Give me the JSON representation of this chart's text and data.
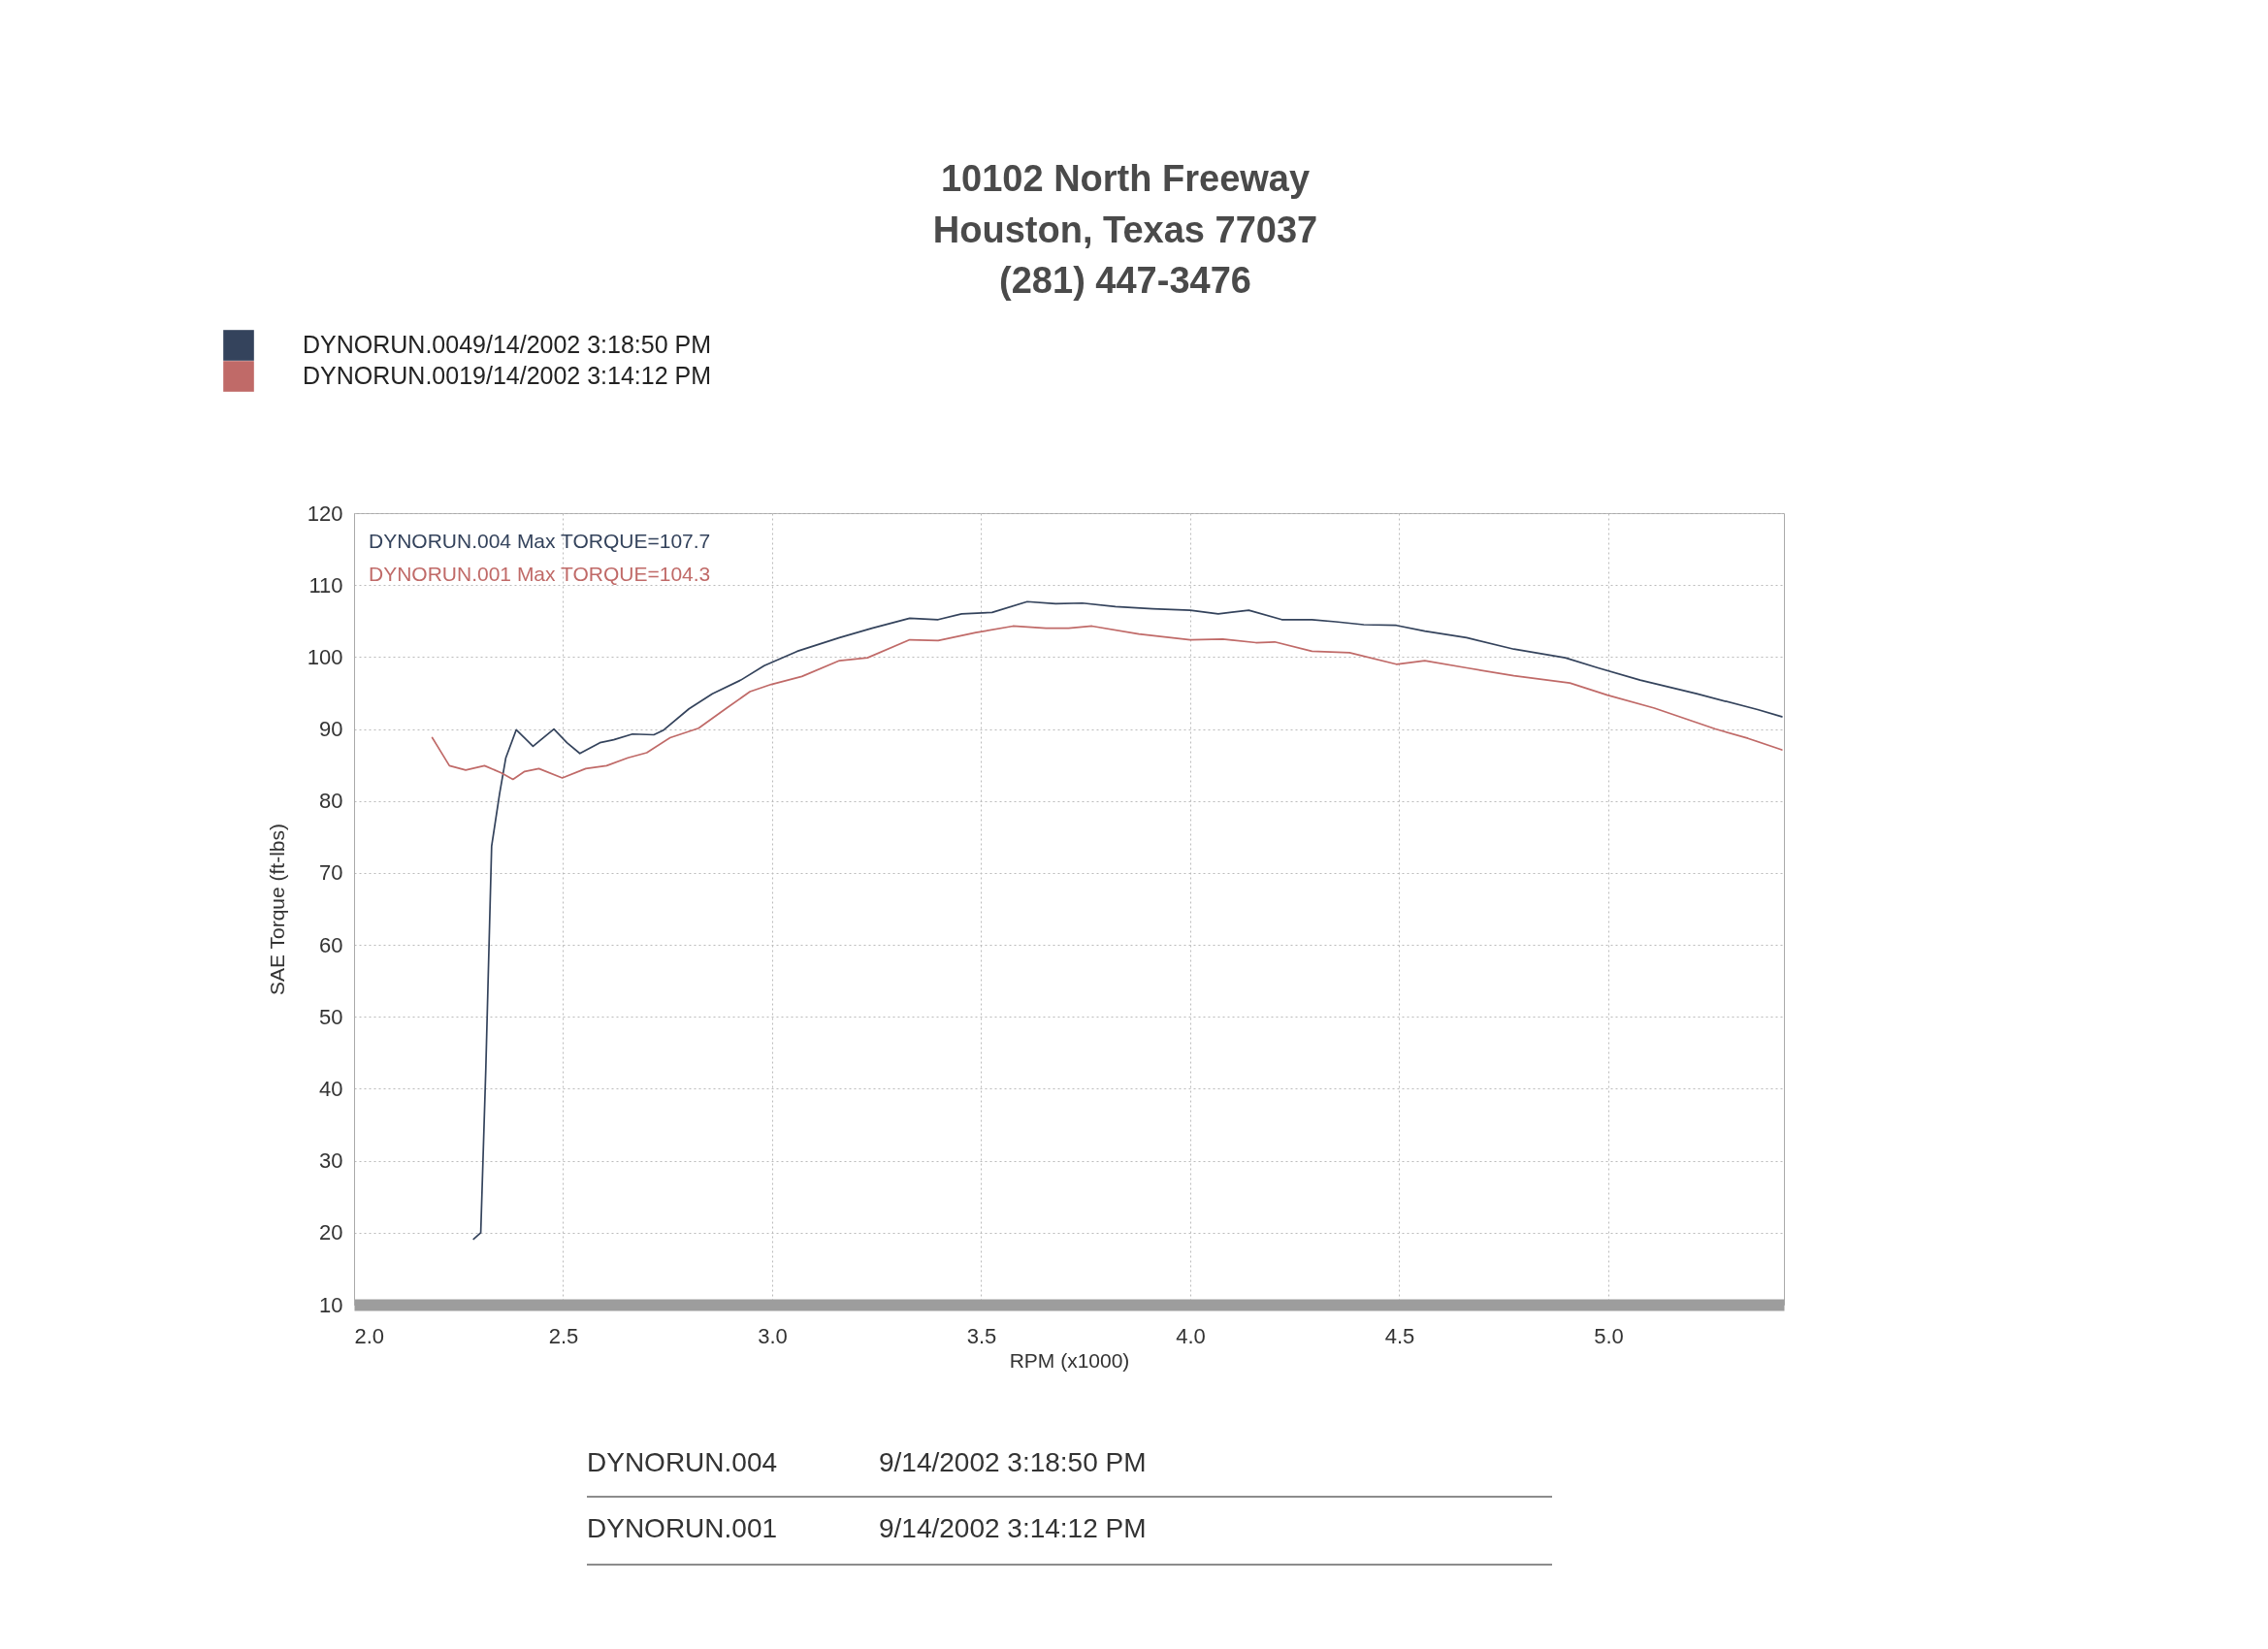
{
  "chart_data": {
    "type": "line",
    "xlabel": "RPM (x1000)",
    "ylabel": "SAE Torque (ft-lbs)",
    "annotations": [
      "DYNORUN.004 Max TORQUE=107.7",
      "DYNORUN.001 Max TORQUE=104.3",
      "10102 North Freeway",
      "Houston, Texas 77037",
      "(281) 447-3476",
      "DYNORUN.004",
      "9/14/2002 3:18:50 PM",
      "DYNORUN.001",
      "9/14/2002 3:14:12 PM"
    ],
    "series": [
      {
        "name": "DYNORUN.0049/14/2002 3:18:50 PM",
        "color": "#34435c",
        "x": [
          2.286,
          2.303,
          2.315,
          2.329,
          2.348,
          2.363,
          2.388,
          2.428,
          2.478,
          2.509,
          2.54,
          2.588,
          2.621,
          2.666,
          2.717,
          2.739,
          2.801,
          2.857,
          2.925,
          2.981,
          3.06,
          3.161,
          3.239,
          3.329,
          3.397,
          3.453,
          3.526,
          3.61,
          3.678,
          3.742,
          3.821,
          3.91,
          4.0,
          4.067,
          4.14,
          4.219,
          4.291,
          4.348,
          4.415,
          4.493,
          4.561,
          4.661,
          4.774,
          4.897,
          4.975,
          5.076,
          5.211,
          5.357,
          5.415
        ],
        "values": [
          19.1,
          20.0,
          42.6,
          73.7,
          81.0,
          86.0,
          89.9,
          87.6,
          90.0,
          88.1,
          86.6,
          88.1,
          88.5,
          89.3,
          89.2,
          89.8,
          92.8,
          94.9,
          96.8,
          98.8,
          100.8,
          102.7,
          104.0,
          105.4,
          105.2,
          106.0,
          106.2,
          107.7,
          107.4,
          107.5,
          107.0,
          106.7,
          106.5,
          106.0,
          106.5,
          105.2,
          105.2,
          104.9,
          104.5,
          104.4,
          103.6,
          102.7,
          101.1,
          99.9,
          98.5,
          96.8,
          94.9,
          92.7,
          91.7
        ]
      },
      {
        "name": "DYNORUN.0019/14/2002 3:14:12 PM",
        "color": "#c06a68",
        "x": [
          2.187,
          2.228,
          2.267,
          2.312,
          2.352,
          2.38,
          2.408,
          2.442,
          2.498,
          2.554,
          2.604,
          2.655,
          2.7,
          2.756,
          2.824,
          2.891,
          2.947,
          2.998,
          3.071,
          3.161,
          3.228,
          3.329,
          3.397,
          3.487,
          3.576,
          3.655,
          3.709,
          3.765,
          3.877,
          4.0,
          4.078,
          4.157,
          4.202,
          4.291,
          4.381,
          4.493,
          4.561,
          4.661,
          4.774,
          4.908,
          4.998,
          5.11,
          5.256,
          5.334,
          5.415
        ],
        "values": [
          88.8,
          84.9,
          84.3,
          84.9,
          83.9,
          83.0,
          84.1,
          84.5,
          83.2,
          84.5,
          84.9,
          86.0,
          86.7,
          88.8,
          90.1,
          92.9,
          95.2,
          96.2,
          97.3,
          99.5,
          99.9,
          102.4,
          102.3,
          103.4,
          104.3,
          104.0,
          104.0,
          104.3,
          103.2,
          102.4,
          102.5,
          102.0,
          102.1,
          100.8,
          100.6,
          99.0,
          99.5,
          98.5,
          97.4,
          96.4,
          94.7,
          92.9,
          90.0,
          88.7,
          87.1
        ]
      }
    ],
    "xlim": [
      2.0,
      5.42
    ],
    "xticks": [
      {
        "value": 2,
        "label": "2.0"
      },
      2.5,
      {
        "value": 3,
        "label": "3.0"
      },
      3.5,
      {
        "value": 4,
        "label": "4.0"
      },
      4.5,
      {
        "value": 5,
        "label": "5.0"
      }
    ],
    "ylim": [
      10,
      120
    ],
    "yticks": [
      10,
      20,
      30,
      40,
      50,
      60,
      70,
      80,
      90,
      100,
      110,
      120
    ],
    "grid": true,
    "legend": "top left"
  }
}
